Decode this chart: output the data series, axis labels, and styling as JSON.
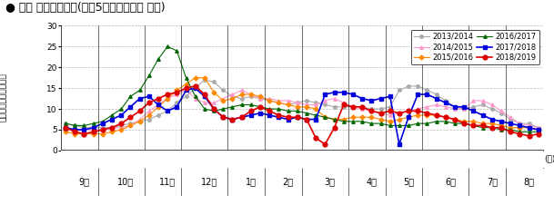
{
  "title": "● 県内 週別発生動向(過去5シーズンとの 比較)",
  "ylabel": "定点当たり患者報告数",
  "xlabel_unit": "(週)",
  "ylim": [
    0,
    30
  ],
  "yticks": [
    0,
    5,
    10,
    15,
    20,
    25,
    30
  ],
  "month_labels": [
    "9月",
    "10月",
    "11月",
    "12月",
    "1月",
    "2月",
    "3月",
    "4月",
    "5月",
    "6月",
    "7月",
    "8月"
  ],
  "series": [
    {
      "label": "2013/2014",
      "color": "#aaaaaa",
      "marker": "o",
      "markersize": 2.5,
      "linewidth": 0.8,
      "values": [
        6.5,
        6.0,
        5.5,
        5.5,
        5.5,
        5.5,
        6.0,
        6.5,
        7.0,
        7.5,
        8.5,
        9.5,
        11.5,
        13.0,
        15.0,
        17.0,
        16.5,
        14.5,
        13.0,
        12.5,
        13.0,
        12.5,
        12.0,
        11.5,
        11.0,
        11.5,
        12.0,
        11.5,
        11.0,
        10.5,
        10.5,
        10.5,
        10.5,
        10.0,
        10.0,
        10.5,
        14.5,
        15.5,
        15.5,
        14.5,
        13.5,
        12.0,
        10.5,
        10.0,
        10.5,
        11.0,
        10.0,
        9.0,
        7.5,
        6.5,
        6.5,
        5.5
      ]
    },
    {
      "label": "2014/2015",
      "color": "#ff99cc",
      "marker": "^",
      "markersize": 2.5,
      "linewidth": 0.8,
      "values": [
        5.5,
        5.0,
        5.0,
        5.0,
        5.0,
        5.5,
        5.5,
        6.0,
        7.5,
        9.5,
        11.0,
        12.5,
        13.5,
        14.5,
        12.5,
        11.5,
        11.5,
        12.5,
        13.5,
        14.5,
        13.5,
        12.5,
        12.5,
        12.0,
        12.0,
        11.5,
        11.0,
        11.0,
        12.0,
        12.5,
        11.5,
        10.5,
        10.0,
        9.5,
        9.0,
        8.5,
        9.0,
        9.5,
        10.0,
        10.5,
        11.0,
        10.5,
        10.0,
        10.0,
        12.0,
        12.0,
        11.0,
        9.5,
        8.0,
        6.5,
        6.0,
        5.5
      ]
    },
    {
      "label": "2015/2016",
      "color": "#ff8800",
      "marker": "D",
      "markersize": 2.5,
      "linewidth": 0.8,
      "values": [
        4.5,
        4.0,
        4.0,
        4.0,
        4.0,
        4.5,
        5.0,
        6.0,
        7.0,
        8.5,
        10.5,
        12.5,
        14.5,
        16.0,
        17.5,
        17.5,
        14.0,
        12.0,
        12.5,
        13.5,
        13.5,
        13.0,
        12.0,
        11.5,
        11.0,
        10.5,
        10.5,
        10.0,
        8.0,
        7.5,
        7.5,
        8.0,
        8.0,
        8.0,
        7.5,
        7.0,
        7.5,
        8.0,
        8.5,
        8.5,
        8.5,
        8.0,
        7.5,
        7.0,
        7.0,
        6.5,
        6.5,
        6.0,
        5.5,
        5.5,
        5.5,
        5.0
      ]
    },
    {
      "label": "2016/2017",
      "color": "#006600",
      "marker": "^",
      "markersize": 2.5,
      "linewidth": 0.8,
      "values": [
        6.5,
        6.0,
        6.0,
        6.5,
        7.0,
        8.5,
        10.0,
        13.0,
        14.5,
        18.0,
        22.0,
        25.0,
        24.0,
        17.5,
        13.0,
        10.0,
        9.5,
        10.0,
        10.5,
        11.0,
        11.0,
        10.5,
        10.0,
        10.0,
        9.5,
        9.5,
        9.0,
        8.5,
        8.0,
        7.5,
        7.0,
        7.0,
        7.0,
        6.5,
        6.5,
        6.0,
        6.0,
        6.0,
        6.5,
        6.5,
        7.0,
        7.0,
        6.5,
        6.5,
        6.0,
        5.5,
        5.5,
        5.0,
        5.0,
        4.5,
        4.5,
        4.5
      ]
    },
    {
      "label": "2017/2018",
      "color": "#0000dd",
      "marker": "s",
      "markersize": 2.5,
      "linewidth": 1.2,
      "values": [
        5.5,
        5.0,
        5.0,
        5.5,
        6.5,
        7.5,
        8.5,
        10.5,
        12.5,
        13.0,
        11.0,
        9.5,
        10.5,
        14.5,
        15.0,
        13.0,
        10.0,
        8.0,
        7.5,
        8.0,
        8.5,
        9.0,
        8.5,
        8.0,
        7.5,
        8.0,
        7.5,
        7.5,
        13.5,
        14.0,
        14.0,
        13.5,
        12.5,
        12.0,
        12.5,
        13.0,
        1.5,
        8.0,
        13.5,
        13.5,
        12.5,
        11.5,
        10.5,
        10.5,
        9.5,
        8.5,
        7.5,
        7.0,
        6.5,
        6.0,
        5.5,
        5.0
      ]
    },
    {
      "label": "2018/2019",
      "color": "#dd0000",
      "marker": "o",
      "markersize": 3.5,
      "linewidth": 1.2,
      "values": [
        5.5,
        4.5,
        4.0,
        4.5,
        5.0,
        5.5,
        6.5,
        8.0,
        9.5,
        11.5,
        12.5,
        13.5,
        14.0,
        15.0,
        15.5,
        13.5,
        10.0,
        8.0,
        7.5,
        8.0,
        9.5,
        10.5,
        9.5,
        8.5,
        8.0,
        8.0,
        7.5,
        3.0,
        1.5,
        5.5,
        11.0,
        10.5,
        10.5,
        9.5,
        9.0,
        9.5,
        9.0,
        9.5,
        9.5,
        9.0,
        8.5,
        8.0,
        7.5,
        6.5,
        6.0,
        6.0,
        5.5,
        5.5,
        4.5,
        4.0,
        3.5,
        4.0
      ]
    }
  ],
  "month_starts_week": [
    0,
    4,
    9,
    13,
    18,
    22,
    26,
    31,
    35,
    39,
    44,
    48,
    52
  ],
  "background_color": "#ffffff",
  "grid_color": "#bbbbbb",
  "title_fontsize": 9,
  "axis_fontsize": 6.5,
  "legend_fontsize": 6,
  "ylabel_fontsize": 6.5
}
